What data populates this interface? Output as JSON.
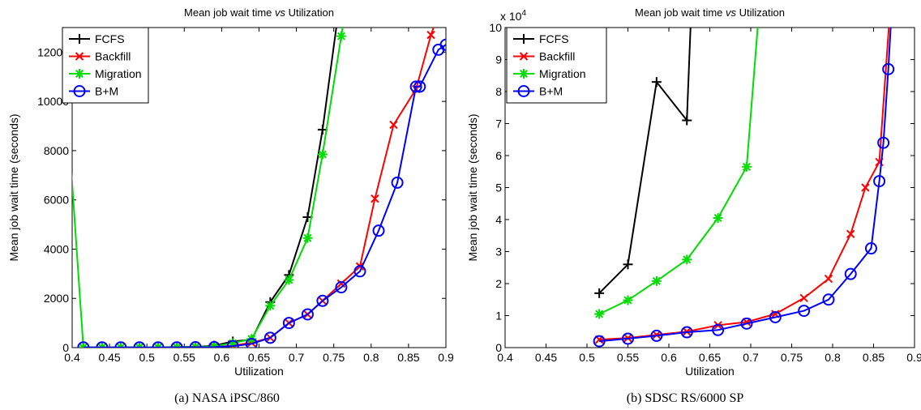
{
  "chart_data": [
    {
      "type": "line",
      "title": "Mean job wait time vs Utilization",
      "title_parts": [
        "Mean job wait time ",
        "vs",
        " Utilization"
      ],
      "xlabel": "Utilization",
      "ylabel": "Mean job wait time (seconds)",
      "caption": "(a) NASA iPSC/860",
      "xlim": [
        0.4,
        0.9
      ],
      "ylim": [
        0,
        13000
      ],
      "xticks": [
        0.4,
        0.45,
        0.5,
        0.55,
        0.6,
        0.65,
        0.7,
        0.75,
        0.8,
        0.85,
        0.9
      ],
      "xtick_labels": [
        "0.4",
        "0.45",
        "0.5",
        "0.55",
        "0.6",
        "0.65",
        "0.7",
        "0.75",
        "0.8",
        "0.85",
        "0.9"
      ],
      "yticks": [
        0,
        2000,
        4000,
        6000,
        8000,
        10000,
        12000
      ],
      "ytick_labels": [
        "0",
        "2000",
        "4000",
        "6000",
        "8000",
        "10000",
        "12000"
      ],
      "exponent_label": "",
      "legend_position": "top-left",
      "series": [
        {
          "name": "FCFS",
          "color": "#000000",
          "marker": "plus",
          "x": [
            0.415,
            0.44,
            0.465,
            0.49,
            0.515,
            0.54,
            0.565,
            0.59,
            0.615,
            0.64,
            0.665,
            0.69,
            0.715,
            0.735,
            0.76
          ],
          "y": [
            10,
            10,
            10,
            15,
            15,
            20,
            30,
            80,
            250,
            320,
            1850,
            2950,
            5300,
            8850,
            14500
          ]
        },
        {
          "name": "Backfill",
          "color": "#ff0000",
          "marker": "x",
          "x": [
            0.415,
            0.44,
            0.465,
            0.49,
            0.515,
            0.54,
            0.565,
            0.59,
            0.615,
            0.64,
            0.665,
            0.69,
            0.715,
            0.735,
            0.76,
            0.785,
            0.805,
            0.83,
            0.86,
            0.88,
            0.895
          ],
          "y": [
            10,
            10,
            10,
            10,
            10,
            10,
            15,
            20,
            80,
            200,
            400,
            1000,
            1350,
            1900,
            2600,
            3300,
            6050,
            9050,
            10500,
            12700,
            14000
          ]
        },
        {
          "name": "Migration",
          "color": "#00dd00",
          "marker": "asterisk",
          "x": [
            0.39,
            0.415,
            0.44,
            0.465,
            0.49,
            0.515,
            0.54,
            0.565,
            0.59,
            0.615,
            0.64,
            0.665,
            0.69,
            0.715,
            0.735,
            0.76,
            0.77
          ],
          "y": [
            11100,
            10,
            10,
            10,
            15,
            15,
            20,
            30,
            60,
            180,
            350,
            1700,
            2750,
            4450,
            7850,
            12650,
            14500
          ]
        },
        {
          "name": "B+M",
          "color": "#0000ff",
          "marker": "circle",
          "x": [
            0.415,
            0.44,
            0.465,
            0.49,
            0.515,
            0.54,
            0.565,
            0.59,
            0.615,
            0.64,
            0.665,
            0.69,
            0.715,
            0.735,
            0.76,
            0.785,
            0.81,
            0.835,
            0.86,
            0.865,
            0.89,
            0.9
          ],
          "y": [
            10,
            10,
            10,
            10,
            10,
            10,
            15,
            20,
            60,
            150,
            400,
            1000,
            1350,
            1900,
            2450,
            3100,
            4750,
            6700,
            10600,
            10600,
            12100,
            12300
          ]
        }
      ]
    },
    {
      "type": "line",
      "title": "Mean job wait time vs Utilization",
      "title_parts": [
        "Mean job wait time ",
        "vs",
        " Utilization"
      ],
      "xlabel": "Utilization",
      "ylabel": "Mean job wait time (seconds)",
      "caption": "(b) SDSC RS/6000 SP",
      "xlim": [
        0.4,
        0.9
      ],
      "ylim": [
        0,
        10
      ],
      "xticks": [
        0.4,
        0.45,
        0.5,
        0.55,
        0.6,
        0.65,
        0.7,
        0.75,
        0.8,
        0.85,
        0.9
      ],
      "xtick_labels": [
        "0.4",
        "0.45",
        "0.5",
        "0.55",
        "0.6",
        "0.65",
        "0.7",
        "0.75",
        "0.8",
        "0.85",
        "0.9"
      ],
      "yticks": [
        0,
        1,
        2,
        3,
        4,
        5,
        6,
        7,
        8,
        9,
        10
      ],
      "ytick_labels": [
        "0",
        "1",
        "2",
        "3",
        "4",
        "5",
        "6",
        "7",
        "8",
        "9",
        "10"
      ],
      "exponent_label": "x 10",
      "exponent_sup": "4",
      "legend_position": "top-left",
      "series": [
        {
          "name": "FCFS",
          "color": "#000000",
          "marker": "plus",
          "x": [
            0.515,
            0.55,
            0.585,
            0.622,
            0.628
          ],
          "y": [
            1.7,
            2.6,
            8.3,
            7.1,
            11
          ]
        },
        {
          "name": "Backfill",
          "color": "#ff0000",
          "marker": "x",
          "x": [
            0.515,
            0.55,
            0.585,
            0.622,
            0.66,
            0.695,
            0.73,
            0.765,
            0.795,
            0.822,
            0.84,
            0.857,
            0.87
          ],
          "y": [
            0.25,
            0.3,
            0.4,
            0.5,
            0.7,
            0.8,
            1.05,
            1.55,
            2.15,
            3.55,
            5.0,
            5.8,
            10.5
          ]
        },
        {
          "name": "Migration",
          "color": "#00dd00",
          "marker": "asterisk",
          "x": [
            0.515,
            0.55,
            0.585,
            0.622,
            0.66,
            0.695,
            0.71
          ],
          "y": [
            1.05,
            1.48,
            2.08,
            2.75,
            4.05,
            5.65,
            10.5
          ]
        },
        {
          "name": "B+M",
          "color": "#0000ff",
          "marker": "circle",
          "x": [
            0.515,
            0.55,
            0.585,
            0.622,
            0.66,
            0.695,
            0.73,
            0.765,
            0.795,
            0.822,
            0.847,
            0.857,
            0.862,
            0.868,
            0.872
          ],
          "y": [
            0.2,
            0.28,
            0.37,
            0.48,
            0.55,
            0.75,
            0.95,
            1.15,
            1.5,
            2.3,
            3.1,
            5.2,
            6.4,
            8.7,
            10.5
          ]
        }
      ]
    }
  ]
}
